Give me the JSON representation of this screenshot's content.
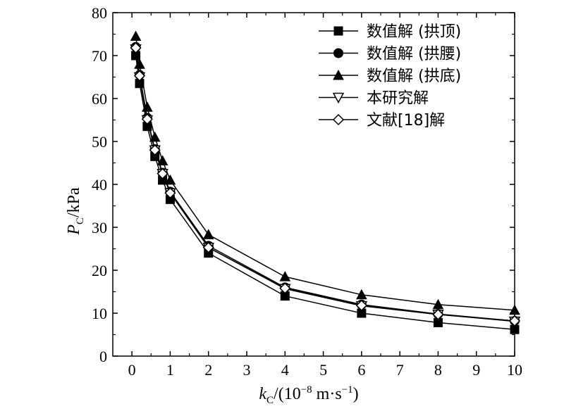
{
  "chart_data": {
    "type": "line",
    "title": "",
    "xlabel": "kC/(10^-8 m·s^-1)",
    "ylabel": "PC/kPa",
    "ylabel_parts": {
      "main": "P",
      "sub": "C",
      "rest": "/kPa"
    },
    "xlabel_parts": {
      "main": "k",
      "sub": "C",
      "rest": "/(10",
      "sup1": "−8",
      "rest2": " m·s",
      "sup2": "−1",
      "rest3": ")"
    },
    "xlim": [
      -0.5,
      10
    ],
    "ylim": [
      0,
      80
    ],
    "x_ticks": [
      0,
      1,
      2,
      3,
      4,
      5,
      6,
      7,
      8,
      9,
      10
    ],
    "y_ticks": [
      0,
      10,
      20,
      30,
      40,
      50,
      60,
      70,
      80
    ],
    "grid": false,
    "legend_position": "top-right",
    "x": [
      0.1,
      0.2,
      0.4,
      0.6,
      0.8,
      1,
      2,
      4,
      6,
      8,
      10
    ],
    "series": [
      {
        "name": "数值解 (拱顶)",
        "marker": "square-filled",
        "values": [
          70,
          63.5,
          53.5,
          46.5,
          41,
          36.5,
          24,
          14,
          10,
          7.8,
          6.2
        ]
      },
      {
        "name": "数值解 (拱腰)",
        "marker": "circle-filled",
        "values": [
          72,
          65.5,
          55.5,
          48.2,
          42.7,
          38.3,
          25.7,
          16,
          12,
          9.8,
          8.2
        ]
      },
      {
        "name": "数值解 (拱底)",
        "marker": "triangle-up-filled",
        "values": [
          74.5,
          68,
          58,
          51,
          45.5,
          41,
          28.3,
          18.5,
          14.3,
          12,
          10.7
        ]
      },
      {
        "name": "本研究解",
        "marker": "triangle-down-open",
        "values": [
          71.5,
          65,
          55,
          48,
          42.5,
          38,
          25.3,
          15.7,
          11.7,
          9.7,
          8.1
        ]
      },
      {
        "name": "文献[18]解",
        "marker": "diamond-open",
        "values": [
          71.8,
          65.3,
          55.2,
          48,
          42.5,
          38,
          25.3,
          15.8,
          11.8,
          9.7,
          8.2
        ]
      }
    ]
  }
}
